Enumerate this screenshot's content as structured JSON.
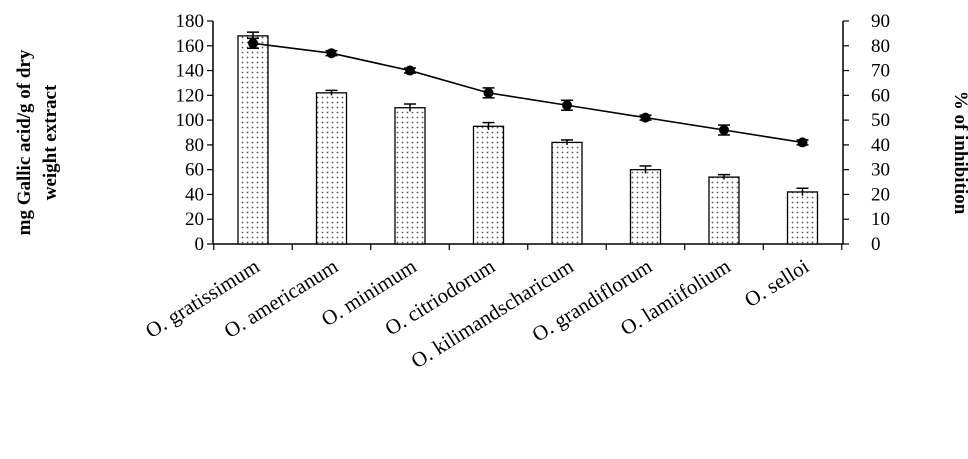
{
  "chart_data": {
    "type": "bar",
    "categories": [
      "O. gratissimum",
      "O. americanum",
      "O. minimum",
      "O. citriodorum",
      "O. kilimandscharicum",
      "O. grandiflorum",
      "O. lamiifolium",
      "O. selloi"
    ],
    "series": [
      {
        "axis": "left",
        "type": "bar",
        "pattern": "dotted",
        "values": [
          168,
          122,
          110,
          95,
          82,
          60,
          54,
          42
        ],
        "errors": [
          3,
          2,
          3,
          3,
          2,
          3,
          2,
          3
        ]
      },
      {
        "axis": "right",
        "type": "line",
        "marker": "circle",
        "values": [
          81,
          77,
          70,
          61,
          56,
          51,
          46,
          41
        ],
        "errors": [
          2,
          1,
          1,
          2,
          2,
          1,
          2,
          1
        ]
      }
    ],
    "ylabel": [
      "mg Gallic acid/g of dry",
      "weight extract"
    ],
    "ylabel_right": "% of inhibition",
    "ylim": [
      0,
      180
    ],
    "yticks": [
      0,
      20,
      40,
      60,
      80,
      100,
      120,
      140,
      160,
      180
    ],
    "ylim_right": [
      0,
      90
    ],
    "yticks_right": [
      0,
      10,
      20,
      30,
      40,
      50,
      60,
      70,
      80,
      90
    ],
    "grid": false,
    "legend": "none",
    "colors": {
      "bar_fill": "#ffffff",
      "bar_dots": "#555555",
      "line": "#000000",
      "axis": "#000000"
    }
  }
}
